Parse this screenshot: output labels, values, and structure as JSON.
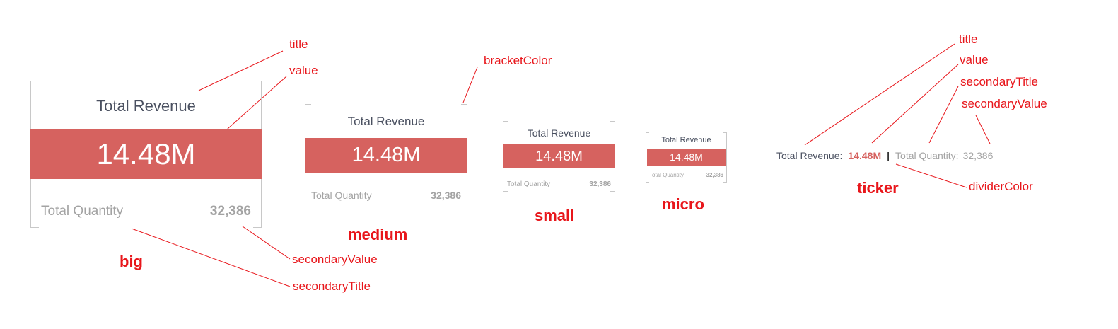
{
  "colors": {
    "band": "#d6625f",
    "bracket": "#c8c8c8",
    "annotation": "#e8161b",
    "title_text": "#4a5060",
    "secondary_text": "#a3a3a3",
    "ticker_value": "#d6625f",
    "ticker_divider": "#333333"
  },
  "widgets": {
    "big": {
      "title": "Total Revenue",
      "value": "14.48M",
      "secondary_title": "Total Quantity",
      "secondary_value": "32,386",
      "size_label": "big"
    },
    "medium": {
      "title": "Total Revenue",
      "value": "14.48M",
      "secondary_title": "Total Quantity",
      "secondary_value": "32,386",
      "size_label": "medium"
    },
    "small": {
      "title": "Total Revenue",
      "value": "14.48M",
      "secondary_title": "Total Quantity",
      "secondary_value": "32,386",
      "size_label": "small"
    },
    "micro": {
      "title": "Total Revenue",
      "value": "14.48M",
      "secondary_title": "Total Quantity",
      "secondary_value": "32,386",
      "size_label": "micro"
    },
    "ticker": {
      "title": "Total Revenue:",
      "value": "14.48M",
      "divider": "|",
      "secondary_title": "Total Quantity:",
      "secondary_value": "32,386",
      "size_label": "ticker"
    }
  },
  "annotations": {
    "big_title": "title",
    "big_value": "value",
    "big_secondary_value": "secondaryValue",
    "big_secondary_title": "secondaryTitle",
    "medium_bracket_color": "bracketColor",
    "ticker_title": "title",
    "ticker_value": "value",
    "ticker_secondary_title": "secondaryTitle",
    "ticker_secondary_value": "secondaryValue",
    "ticker_divider_color": "dividerColor"
  }
}
